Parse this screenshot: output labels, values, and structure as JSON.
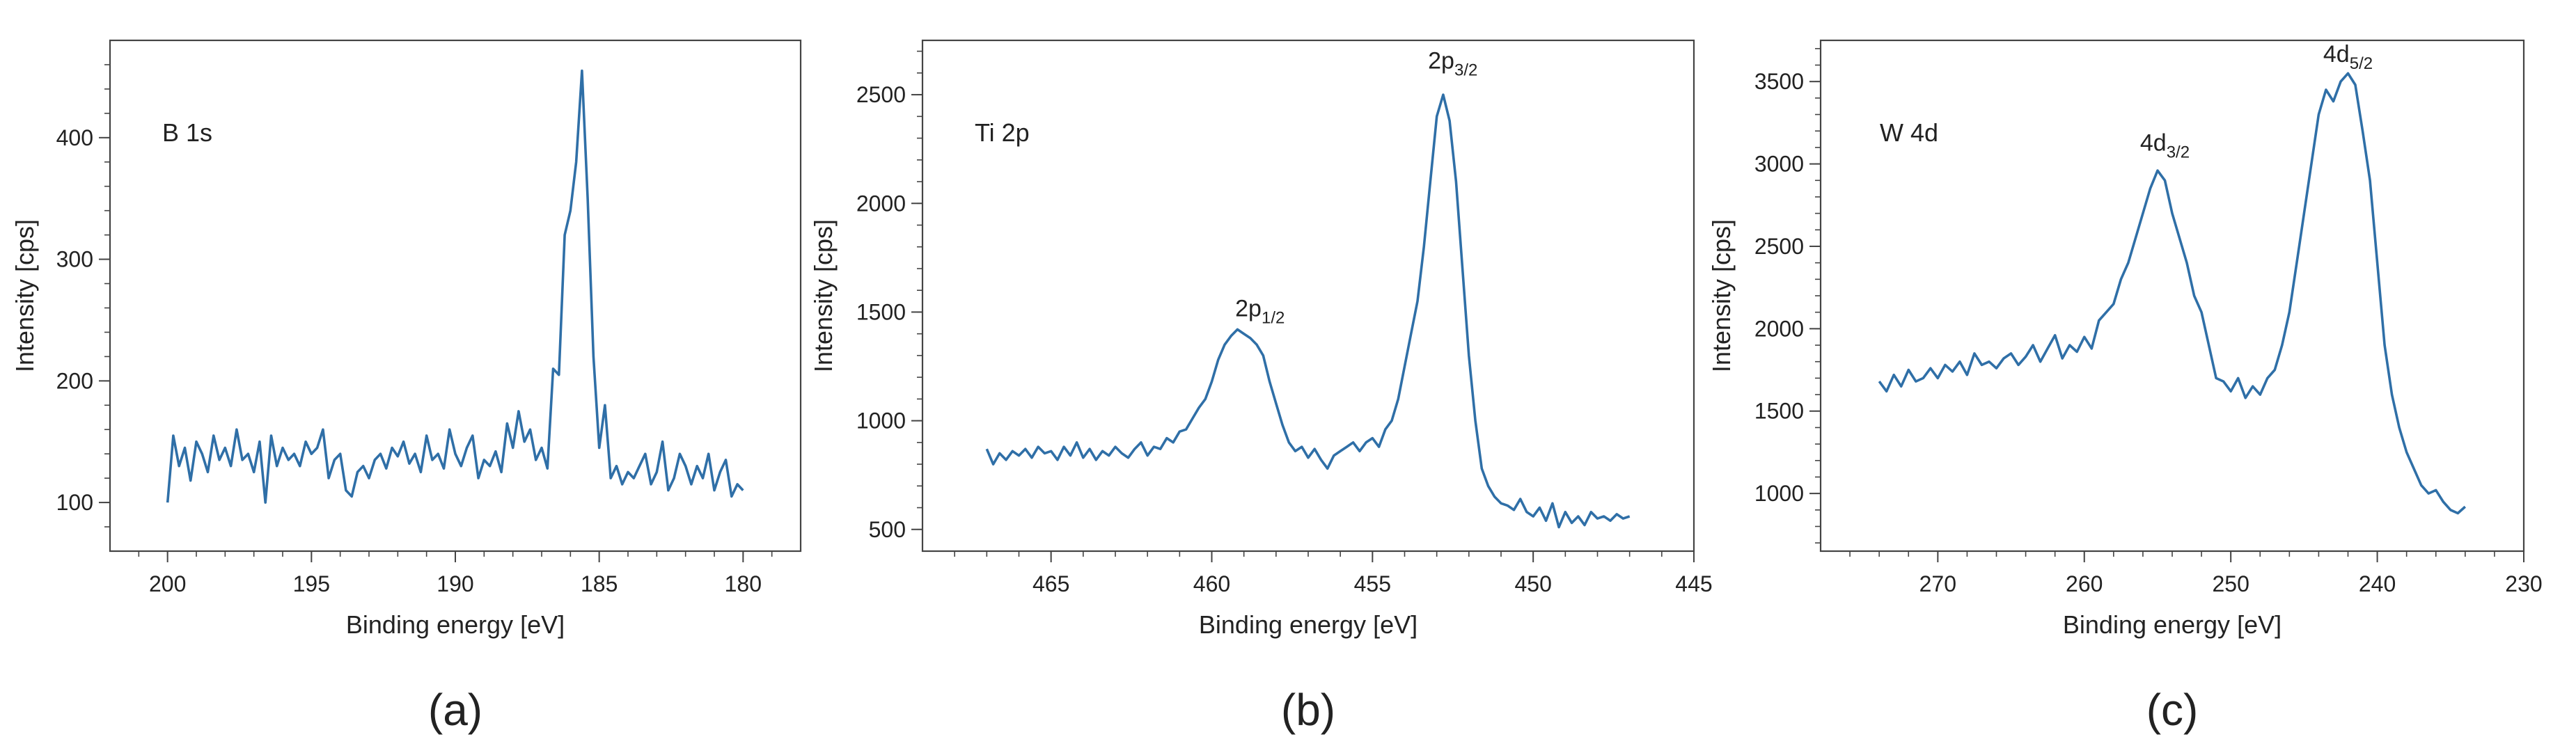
{
  "chart_data": [
    {
      "type": "line",
      "panel_label": "(a)",
      "title": "B 1s",
      "xlabel": "Binding energy [eV]",
      "ylabel": "Intensity [cps]",
      "xlim": [
        202,
        178
      ],
      "ylim": [
        60,
        480
      ],
      "xticks": [
        200,
        195,
        190,
        185,
        180
      ],
      "yticks": [
        100,
        200,
        300,
        400
      ],
      "series_color": "#2f6fa7",
      "peak_labels": [],
      "series": [
        {
          "name": "B 1s",
          "x": [
            200.0,
            199.8,
            199.6,
            199.4,
            199.2,
            199.0,
            198.8,
            198.6,
            198.4,
            198.2,
            198.0,
            197.8,
            197.6,
            197.4,
            197.2,
            197.0,
            196.8,
            196.6,
            196.4,
            196.2,
            196.0,
            195.8,
            195.6,
            195.4,
            195.2,
            195.0,
            194.8,
            194.6,
            194.4,
            194.2,
            194.0,
            193.8,
            193.6,
            193.4,
            193.2,
            193.0,
            192.8,
            192.6,
            192.4,
            192.2,
            192.0,
            191.8,
            191.6,
            191.4,
            191.2,
            191.0,
            190.8,
            190.6,
            190.4,
            190.2,
            190.0,
            189.8,
            189.6,
            189.4,
            189.2,
            189.0,
            188.8,
            188.6,
            188.4,
            188.2,
            188.0,
            187.8,
            187.6,
            187.4,
            187.2,
            187.0,
            186.8,
            186.6,
            186.4,
            186.2,
            186.0,
            185.8,
            185.6,
            185.4,
            185.2,
            185.0,
            184.8,
            184.6,
            184.4,
            184.2,
            184.0,
            183.8,
            183.6,
            183.4,
            183.2,
            183.0,
            182.8,
            182.6,
            182.4,
            182.2,
            182.0,
            181.8,
            181.6,
            181.4,
            181.2,
            181.0,
            180.8,
            180.6,
            180.4,
            180.2,
            180.0
          ],
          "y": [
            100,
            155,
            130,
            145,
            118,
            150,
            140,
            125,
            155,
            135,
            145,
            130,
            160,
            135,
            140,
            125,
            150,
            100,
            155,
            130,
            145,
            135,
            140,
            130,
            150,
            140,
            145,
            160,
            120,
            135,
            140,
            110,
            105,
            125,
            130,
            120,
            135,
            140,
            128,
            145,
            138,
            150,
            132,
            140,
            125,
            155,
            135,
            140,
            128,
            160,
            140,
            130,
            145,
            155,
            120,
            135,
            130,
            142,
            125,
            165,
            145,
            175,
            150,
            160,
            135,
            145,
            128,
            210,
            205,
            320,
            340,
            380,
            455,
            350,
            220,
            145,
            180,
            120,
            130,
            115,
            125,
            120,
            130,
            140,
            115,
            125,
            150,
            110,
            120,
            140,
            130,
            115,
            130,
            120,
            140,
            110,
            125,
            135,
            105,
            115,
            110
          ]
        }
      ]
    },
    {
      "type": "line",
      "panel_label": "(b)",
      "title": "Ti 2p",
      "xlabel": "Binding energy [eV]",
      "ylabel": "Intensity [cps]",
      "xlim": [
        469,
        445
      ],
      "ylim": [
        400,
        2750
      ],
      "xticks": [
        465,
        460,
        455,
        450,
        445
      ],
      "yticks": [
        500,
        1000,
        1500,
        2000,
        2500
      ],
      "series_color": "#2f6fa7",
      "peak_labels": [
        {
          "main": "2p",
          "sub": "1/2",
          "x": 458.5,
          "y": 1480
        },
        {
          "main": "2p",
          "sub": "3/2",
          "x": 452.5,
          "y": 2620
        }
      ],
      "series": [
        {
          "name": "Ti 2p",
          "x": [
            467.0,
            466.8,
            466.6,
            466.4,
            466.2,
            466.0,
            465.8,
            465.6,
            465.4,
            465.2,
            465.0,
            464.8,
            464.6,
            464.4,
            464.2,
            464.0,
            463.8,
            463.6,
            463.4,
            463.2,
            463.0,
            462.8,
            462.6,
            462.4,
            462.2,
            462.0,
            461.8,
            461.6,
            461.4,
            461.2,
            461.0,
            460.8,
            460.6,
            460.4,
            460.2,
            460.0,
            459.8,
            459.6,
            459.4,
            459.2,
            459.0,
            458.8,
            458.6,
            458.4,
            458.2,
            458.0,
            457.8,
            457.6,
            457.4,
            457.2,
            457.0,
            456.8,
            456.6,
            456.4,
            456.2,
            456.0,
            455.8,
            455.6,
            455.4,
            455.2,
            455.0,
            454.8,
            454.6,
            454.4,
            454.2,
            454.0,
            453.8,
            453.6,
            453.4,
            453.2,
            453.0,
            452.8,
            452.6,
            452.4,
            452.2,
            452.0,
            451.8,
            451.6,
            451.4,
            451.2,
            451.0,
            450.8,
            450.6,
            450.4,
            450.2,
            450.0,
            449.8,
            449.6,
            449.4,
            449.2,
            449.0,
            448.8,
            448.6,
            448.4,
            448.2,
            448.0,
            447.8,
            447.6,
            447.4,
            447.2,
            447.0
          ],
          "y": [
            870,
            800,
            850,
            820,
            860,
            840,
            870,
            830,
            880,
            850,
            860,
            820,
            880,
            840,
            900,
            830,
            870,
            820,
            860,
            840,
            880,
            850,
            830,
            870,
            900,
            840,
            880,
            870,
            920,
            900,
            950,
            960,
            1010,
            1060,
            1100,
            1180,
            1280,
            1350,
            1390,
            1420,
            1400,
            1380,
            1350,
            1300,
            1180,
            1080,
            980,
            900,
            860,
            880,
            830,
            870,
            820,
            780,
            840,
            860,
            880,
            900,
            860,
            900,
            920,
            880,
            960,
            1000,
            1100,
            1250,
            1400,
            1550,
            1800,
            2100,
            2400,
            2500,
            2380,
            2100,
            1700,
            1300,
            1000,
            780,
            700,
            650,
            620,
            610,
            590,
            640,
            580,
            560,
            600,
            540,
            620,
            510,
            580,
            530,
            560,
            520,
            580,
            550,
            560,
            540,
            570,
            550,
            560
          ]
        }
      ]
    },
    {
      "type": "line",
      "panel_label": "(c)",
      "title": "W 4d",
      "xlabel": "Binding energy [eV]",
      "ylabel": "Intensity [cps]",
      "xlim": [
        278,
        230
      ],
      "ylim": [
        650,
        3750
      ],
      "xticks": [
        270,
        260,
        250,
        240,
        230
      ],
      "yticks": [
        1000,
        1500,
        2000,
        2500,
        3000,
        3500
      ],
      "series_color": "#2f6fa7",
      "peak_labels": [
        {
          "main": "4d",
          "sub": "3/2",
          "x": 254.5,
          "y": 3080
        },
        {
          "main": "4d",
          "sub": "5/2",
          "x": 242.0,
          "y": 3620
        }
      ],
      "series": [
        {
          "name": "W 4d",
          "x": [
            274.0,
            273.5,
            273.0,
            272.5,
            272.0,
            271.5,
            271.0,
            270.5,
            270.0,
            269.5,
            269.0,
            268.5,
            268.0,
            267.5,
            267.0,
            266.5,
            266.0,
            265.5,
            265.0,
            264.5,
            264.0,
            263.5,
            263.0,
            262.5,
            262.0,
            261.5,
            261.0,
            260.5,
            260.0,
            259.5,
            259.0,
            258.5,
            258.0,
            257.5,
            257.0,
            256.5,
            256.0,
            255.5,
            255.0,
            254.5,
            254.0,
            253.5,
            253.0,
            252.5,
            252.0,
            251.5,
            251.0,
            250.5,
            250.0,
            249.5,
            249.0,
            248.5,
            248.0,
            247.5,
            247.0,
            246.5,
            246.0,
            245.5,
            245.0,
            244.5,
            244.0,
            243.5,
            243.0,
            242.5,
            242.0,
            241.5,
            241.0,
            240.5,
            240.0,
            239.5,
            239.0,
            238.5,
            238.0,
            237.5,
            237.0,
            236.5,
            236.0,
            235.5,
            235.0,
            234.5,
            234.0
          ],
          "y": [
            1680,
            1620,
            1720,
            1650,
            1750,
            1680,
            1700,
            1760,
            1700,
            1780,
            1740,
            1800,
            1720,
            1850,
            1780,
            1800,
            1760,
            1820,
            1850,
            1780,
            1830,
            1900,
            1800,
            1880,
            1960,
            1820,
            1900,
            1860,
            1950,
            1880,
            2050,
            2100,
            2150,
            2300,
            2400,
            2550,
            2700,
            2850,
            2960,
            2900,
            2700,
            2550,
            2400,
            2200,
            2100,
            1900,
            1700,
            1680,
            1620,
            1700,
            1580,
            1650,
            1600,
            1700,
            1750,
            1900,
            2100,
            2400,
            2700,
            3000,
            3300,
            3450,
            3380,
            3500,
            3550,
            3480,
            3200,
            2900,
            2400,
            1900,
            1600,
            1400,
            1250,
            1150,
            1050,
            1000,
            1020,
            950,
            900,
            880,
            920
          ]
        }
      ]
    }
  ]
}
